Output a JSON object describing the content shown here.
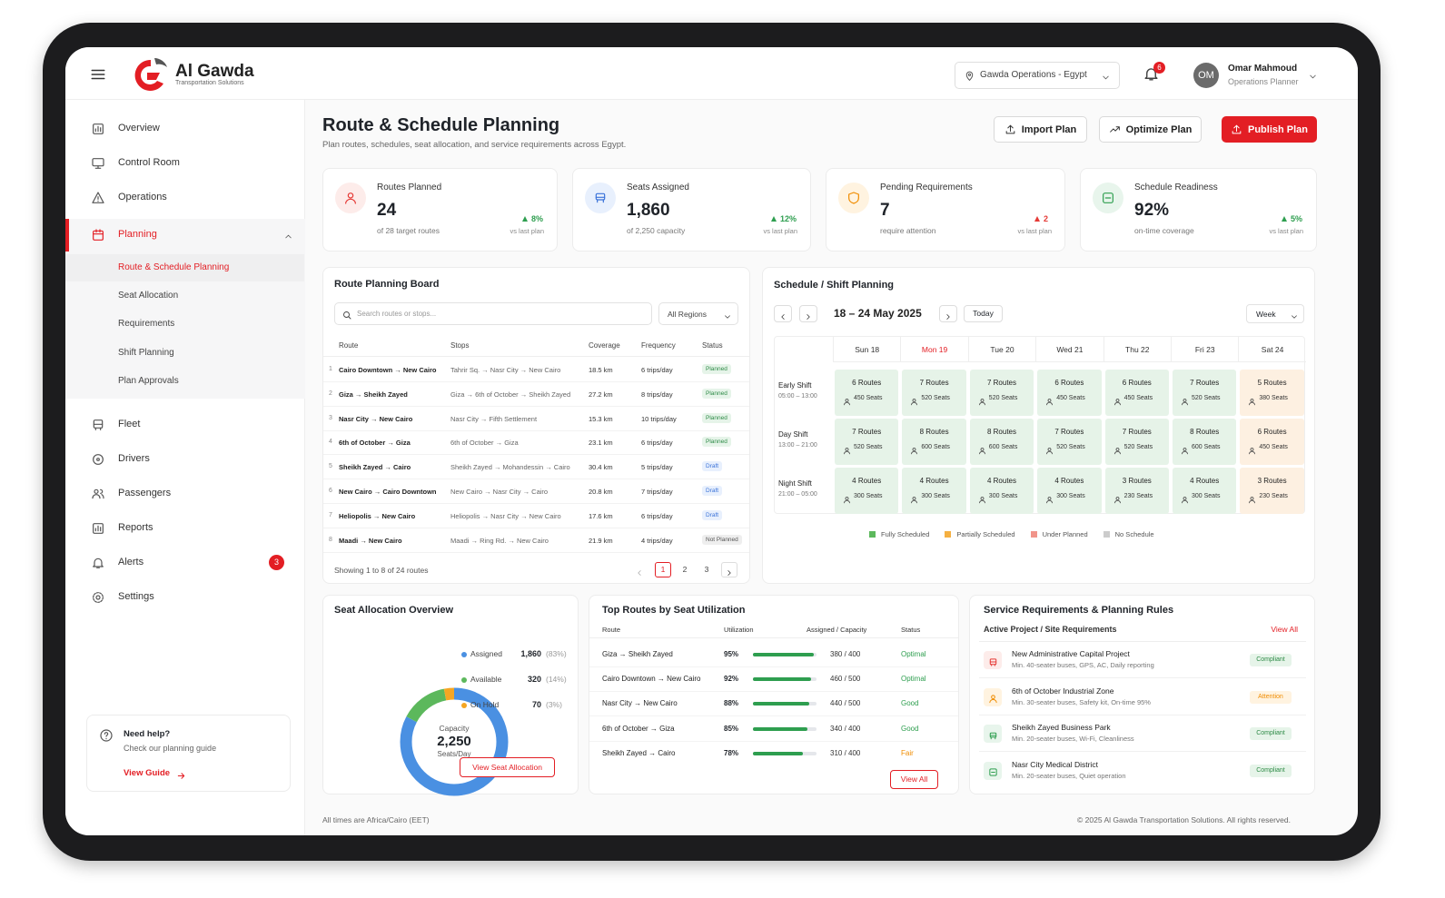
{
  "header": {
    "brand": "Al Gawda",
    "tagline": "Transportation Solutions",
    "location": "Gawda Operations - Egypt",
    "notifications": "6",
    "avatar": "OM",
    "user_name": "Omar Mahmoud",
    "user_role": "Operations Planner"
  },
  "sidebar": {
    "items": [
      {
        "label": "Overview"
      },
      {
        "label": "Control Room"
      },
      {
        "label": "Operations"
      },
      {
        "label": "Planning",
        "children": [
          "Route & Schedule Planning",
          "Seat Allocation",
          "Requirements",
          "Shift Planning",
          "Plan Approvals"
        ]
      },
      {
        "label": "Fleet"
      },
      {
        "label": "Drivers"
      },
      {
        "label": "Passengers"
      },
      {
        "label": "Reports"
      },
      {
        "label": "Alerts",
        "badge": "3"
      },
      {
        "label": "Settings"
      }
    ],
    "help": {
      "title": "Need help?",
      "text": "Check our planning guide",
      "link": "View Guide"
    }
  },
  "page": {
    "title": "Route & Schedule Planning",
    "subtitle": "Plan routes, schedules, seat allocation, and service requirements across Egypt.",
    "buttons": [
      "Import Plan",
      "Optimize Plan",
      "Publish Plan"
    ]
  },
  "kpis": [
    {
      "label": "Routes Planned",
      "value": "24",
      "note": "of 28 target routes",
      "change": "8%",
      "change_note": "vs last plan",
      "color": "#2e9e4f",
      "icon_color": "#e53935",
      "icon_bg": "#fdecea"
    },
    {
      "label": "Seats Assigned",
      "value": "1,860",
      "note": "of 2,250 capacity",
      "change": "12%",
      "change_note": "vs last plan",
      "color": "#2e9e4f",
      "icon_color": "#3b73d9",
      "icon_bg": "#e8f0fd"
    },
    {
      "label": "Pending Requirements",
      "value": "7",
      "note": "require attention",
      "change": "2",
      "change_note": "vs last plan",
      "color": "#e53935",
      "icon_color": "#f08c00",
      "icon_bg": "#fff3e0"
    },
    {
      "label": "Schedule Readiness",
      "value": "92%",
      "note": "on-time coverage",
      "change": "5%",
      "change_note": "vs last plan",
      "color": "#2e9e4f",
      "icon_color": "#2e9e4f",
      "icon_bg": "#e8f5ec"
    }
  ],
  "route_board": {
    "title": "Route Planning Board",
    "search_placeholder": "Search routes or stops...",
    "region_filter": "All Regions",
    "columns": [
      "Route",
      "Stops",
      "Coverage",
      "Frequency",
      "Status"
    ],
    "rows": [
      {
        "index": "1",
        "route": "Cairo Downtown → New Cairo",
        "stops": "Tahrir Sq. → Nasr City → New Cairo",
        "coverage": "18.5 km",
        "frequency": "6 trips/day",
        "status": "Planned",
        "status_color": "#2e8b47",
        "status_bg": "#e6f4e9"
      },
      {
        "index": "2",
        "route": "Giza → Sheikh Zayed",
        "stops": "Giza → 6th of October → Sheikh Zayed",
        "coverage": "27.2 km",
        "frequency": "8 trips/day",
        "status": "Planned",
        "status_color": "#2e8b47",
        "status_bg": "#e6f4e9"
      },
      {
        "index": "3",
        "route": "Nasr City → New Cairo",
        "stops": "Nasr City → Fifth Settlement",
        "coverage": "15.3 km",
        "frequency": "10 trips/day",
        "status": "Planned",
        "status_color": "#2e8b47",
        "status_bg": "#e6f4e9"
      },
      {
        "index": "4",
        "route": "6th of October → Giza",
        "stops": "6th of October → Giza",
        "coverage": "23.1 km",
        "frequency": "6 trips/day",
        "status": "Planned",
        "status_color": "#2e8b47",
        "status_bg": "#e6f4e9"
      },
      {
        "index": "5",
        "route": "Sheikh Zayed → Cairo",
        "stops": "Sheikh Zayed → Mohandessin → Cairo",
        "coverage": "30.4 km",
        "frequency": "5 trips/day",
        "status": "Draft",
        "status_color": "#3b73d9",
        "status_bg": "#e8f0fd"
      },
      {
        "index": "6",
        "route": "New Cairo → Cairo Downtown",
        "stops": "New Cairo → Nasr City → Cairo",
        "coverage": "20.8 km",
        "frequency": "7 trips/day",
        "status": "Draft",
        "status_color": "#3b73d9",
        "status_bg": "#e8f0fd"
      },
      {
        "index": "7",
        "route": "Heliopolis → New Cairo",
        "stops": "Heliopolis → Nasr City → New Cairo",
        "coverage": "17.6 km",
        "frequency": "6 trips/day",
        "status": "Draft",
        "status_color": "#3b73d9",
        "status_bg": "#e8f0fd"
      },
      {
        "index": "8",
        "route": "Maadi → New Cairo",
        "stops": "Maadi → Ring Rd. → New Cairo",
        "coverage": "21.9 km",
        "frequency": "4 trips/day",
        "status": "Not Planned",
        "status_color": "#555555",
        "status_bg": "#eeeeee"
      }
    ],
    "footer": "Showing 1 to 8 of 24 routes",
    "pages": [
      "1",
      "2",
      "3"
    ]
  },
  "schedule": {
    "title": "Schedule / Shift Planning",
    "range": "18 – 24 May 2025",
    "today": "Today",
    "view": "Week",
    "days": [
      "Sun 18",
      "Mon 19",
      "Tue 20",
      "Wed 21",
      "Thu 22",
      "Fri 23",
      "Sat 24"
    ],
    "shifts": [
      {
        "name": "Early Shift",
        "time": "05:00 – 13:00",
        "cells": [
          [
            "6 Routes",
            "450 Seats"
          ],
          [
            "7 Routes",
            "520 Seats"
          ],
          [
            "7 Routes",
            "520 Seats"
          ],
          [
            "6 Routes",
            "450 Seats"
          ],
          [
            "6 Routes",
            "450 Seats"
          ],
          [
            "7 Routes",
            "520 Seats"
          ],
          [
            "5 Routes",
            "380 Seats"
          ]
        ]
      },
      {
        "name": "Day Shift",
        "time": "13:00 – 21:00",
        "cells": [
          [
            "7 Routes",
            "520 Seats"
          ],
          [
            "8 Routes",
            "600 Seats"
          ],
          [
            "8 Routes",
            "600 Seats"
          ],
          [
            "7 Routes",
            "520 Seats"
          ],
          [
            "7 Routes",
            "520 Seats"
          ],
          [
            "8 Routes",
            "600 Seats"
          ],
          [
            "6 Routes",
            "450 Seats"
          ]
        ]
      },
      {
        "name": "Night Shift",
        "time": "21:00 – 05:00",
        "cells": [
          [
            "4 Routes",
            "300 Seats"
          ],
          [
            "4 Routes",
            "300 Seats"
          ],
          [
            "4 Routes",
            "300 Seats"
          ],
          [
            "4 Routes",
            "300 Seats"
          ],
          [
            "3 Routes",
            "230 Seats"
          ],
          [
            "4 Routes",
            "300 Seats"
          ],
          [
            "3 Routes",
            "230 Seats"
          ]
        ]
      }
    ],
    "legend": [
      {
        "label": "Fully Scheduled",
        "color": "#5cb85c"
      },
      {
        "label": "Partially Scheduled",
        "color": "#f5b041"
      },
      {
        "label": "Under Planned",
        "color": "#f1948a"
      },
      {
        "label": "No Schedule",
        "color": "#cccccc"
      }
    ]
  },
  "seat_allocation": {
    "title": "Seat Allocation Overview",
    "center_label": "Capacity",
    "center_value": "2,250",
    "center_unit": "Seats/Day",
    "items": [
      {
        "label": "Assigned",
        "value": {
          "value": 1860,
          "label": "1,860"
        },
        "pct": "(83%)",
        "color": "#4a90e2"
      },
      {
        "label": "Available",
        "value": {
          "value": 320,
          "label": "320"
        },
        "pct": "(14%)",
        "color": "#5cb85c"
      },
      {
        "label": "On Hold",
        "value": {
          "value": 70,
          "label": "70"
        },
        "pct": "(3%)",
        "color": "#f5a623"
      }
    ],
    "button": "View Seat Allocation"
  },
  "top_routes": {
    "title": "Top Routes by Seat Utilization",
    "columns": [
      "Route",
      "Utilization",
      "Assigned / Capacity",
      "Status"
    ],
    "rows": [
      {
        "route": "Giza → Sheikh Zayed",
        "utilization": {
          "value": 95,
          "label": "95%"
        },
        "assigned": "380 / 400",
        "status": "Optimal",
        "status_color": "#2e9e4f"
      },
      {
        "route": "Cairo Downtown → New Cairo",
        "utilization": {
          "value": 92,
          "label": "92%"
        },
        "assigned": "460 / 500",
        "status": "Optimal",
        "status_color": "#2e9e4f"
      },
      {
        "route": "Nasr City → New Cairo",
        "utilization": {
          "value": 88,
          "label": "88%"
        },
        "assigned": "440 / 500",
        "status": "Good",
        "status_color": "#2e9e4f"
      },
      {
        "route": "6th of October → Giza",
        "utilization": {
          "value": 85,
          "label": "85%"
        },
        "assigned": "340 / 400",
        "status": "Good",
        "status_color": "#2e9e4f"
      },
      {
        "route": "Sheikh Zayed → Cairo",
        "utilization": {
          "value": 78,
          "label": "78%"
        },
        "assigned": "310 / 400",
        "status": "Fair",
        "status_color": "#f08c00"
      }
    ],
    "bar_color": "#2e9e4f",
    "button": "View All"
  },
  "service": {
    "title": "Service Requirements & Planning Rules",
    "subtitle": "Active Project / Site Requirements",
    "link": "View All",
    "items": [
      {
        "name": "New Administrative Capital Project",
        "detail": "Min. 40-seater buses, GPS, AC, Daily reporting",
        "status": "Compliant",
        "status_color": "#2e8b47",
        "status_bg": "#e6f4e9",
        "icon_color": "#e53935",
        "icon_bg": "#fdecea"
      },
      {
        "name": "6th of October Industrial Zone",
        "detail": "Min. 30-seater buses, Safety kit, On-time 95%",
        "status": "Attention",
        "status_color": "#f08c00",
        "status_bg": "#fff3e0",
        "icon_color": "#f08c00",
        "icon_bg": "#fff3e0"
      },
      {
        "name": "Sheikh Zayed Business Park",
        "detail": "Min. 20-seater buses, Wi-Fi, Cleanliness",
        "status": "Compliant",
        "status_color": "#2e8b47",
        "status_bg": "#e6f4e9",
        "icon_color": "#2e9e4f",
        "icon_bg": "#e8f5ec"
      },
      {
        "name": "Nasr City Medical District",
        "detail": "Min. 20-seater buses, Quiet operation",
        "status": "Compliant",
        "status_color": "#2e8b47",
        "status_bg": "#e6f4e9",
        "icon_color": "#2e9e4f",
        "icon_bg": "#e8f5ec"
      }
    ]
  },
  "footer": {
    "note": "All times are Africa/Cairo (EET)",
    "copyright": "© 2025 Al Gawda Transportation Solutions. All rights reserved."
  }
}
